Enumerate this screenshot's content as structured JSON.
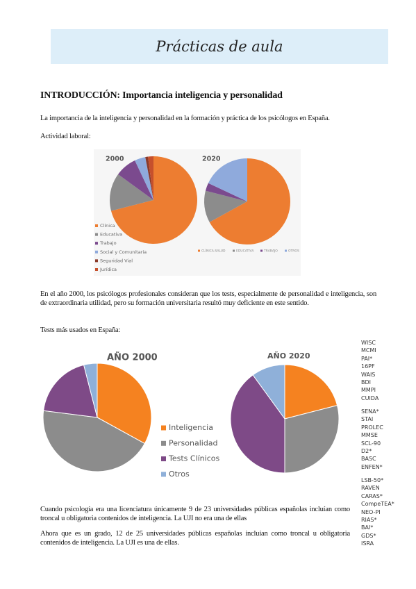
{
  "banner": {
    "title": "Prácticas de aula"
  },
  "heading": "INTRODUCCIÓN: Importancia inteligencia y personalidad",
  "paragraphs": [
    "La importancia de la inteligencia y personalidad en la formación y práctica de los psicólogos en España.",
    "Actividad laboral:",
    "En el año 2000, los psicólogos profesionales consideran que los tests, especialmente de personalidad e inteligencia, son de extraordinaria utilidad, pero su formación universitaria resultó muy deficiente en este sentido.",
    "Tests más usados en España:",
    "Cuando psicología era una licenciatura únicamente 9 de 23 universidades públicas españolas incluían como troncal u obligatoria contenidos de inteligencia. La UJI no era una de ellas",
    "Ahora que es un grado, 12 de 25 universidades públicas españolas incluían como troncal u obligatoria contenidos de inteligencia. La UJI es una de ellas."
  ],
  "tests": [
    [
      "WISC",
      "MCMI",
      "PAI*",
      "16PF",
      "WAIS",
      "BDI",
      "MMPI",
      "CUIDA"
    ],
    [
      "SENA*",
      "STAI",
      "PROLEC",
      "MMSE",
      "SCL-90",
      "D2*",
      "BASC",
      "ENFEN*"
    ],
    [
      "LSB-50*",
      "RAVEN",
      "CARAS*",
      "CompeTEA*",
      "NEO-PI",
      "RIAS*",
      "BAI*",
      "GDS*",
      "ISRA"
    ]
  ],
  "chart_data": [
    {
      "type": "pie",
      "title": "2000",
      "categories": [
        "Clínica",
        "Educativa",
        "Trabajo",
        "Social y Comunitaria",
        "Seguridad Vial",
        "Jurídica"
      ],
      "values": [
        71,
        14,
        8,
        4,
        1,
        2
      ],
      "colors": [
        "#ed7d31",
        "#8c8c8c",
        "#7b4a8e",
        "#8faadc",
        "#8b3a2a",
        "#c6502c"
      ]
    },
    {
      "type": "pie",
      "title": "2020",
      "categories": [
        "CLÍNICA-SALUD",
        "EDUCATIVA",
        "TRABAJO",
        "OTROS"
      ],
      "values": [
        67,
        12,
        3,
        18
      ],
      "colors": [
        "#ed7d31",
        "#8c8c8c",
        "#7b4a8e",
        "#8faadc"
      ]
    },
    {
      "type": "pie",
      "title": "AÑO 2000",
      "categories": [
        "Inteligencia",
        "Personalidad",
        "Tests Clínicos",
        "Otros"
      ],
      "values": [
        33,
        44,
        19,
        4
      ],
      "colors": [
        "#f58220",
        "#8c8c8c",
        "#7e4a87",
        "#8fb0d9"
      ]
    },
    {
      "type": "pie",
      "title": "AÑO 2020",
      "values": [
        21,
        29,
        40,
        10
      ],
      "colors": [
        "#f58220",
        "#8c8c8c",
        "#7e4a87",
        "#8fb0d9"
      ]
    }
  ]
}
